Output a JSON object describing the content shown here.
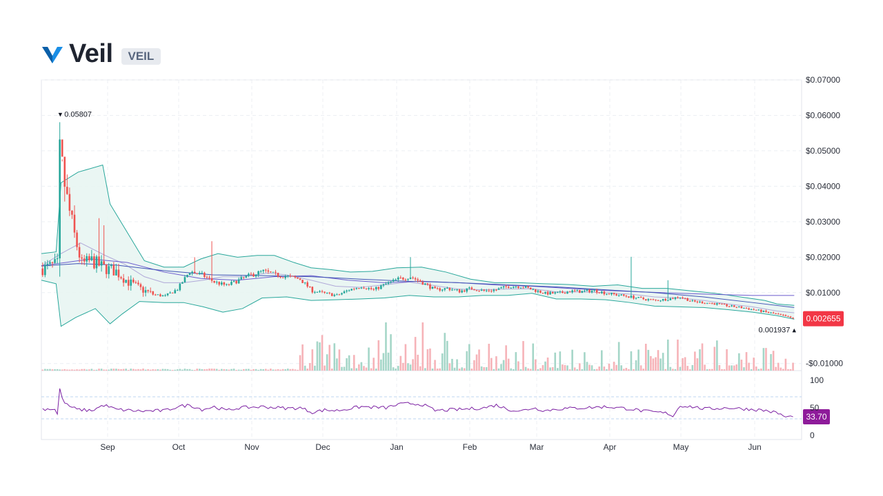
{
  "header": {
    "name": "Veil",
    "symbol": "VEIL",
    "logo_icon": "veil-logo-icon",
    "logo_color": "#1a8ee6"
  },
  "chart_data": {
    "type": "candlestick",
    "price_axis": {
      "tick_labels": [
        "$0.07000",
        "$0.06000",
        "$0.05000",
        "$0.04000",
        "$0.03000",
        "$0.02000",
        "$0.01000",
        "-$0.01000"
      ],
      "tick_values": [
        0.07,
        0.06,
        0.05,
        0.04,
        0.03,
        0.02,
        0.01,
        -0.01
      ],
      "range": [
        -0.012,
        0.07
      ]
    },
    "x_axis": {
      "tick_labels": [
        "Sep",
        "Oct",
        "Nov",
        "Dec",
        "Jan",
        "Feb",
        "Mar",
        "Apr",
        "May",
        "Jun"
      ],
      "range_days": [
        0,
        310
      ]
    },
    "annotations": {
      "high_label": "0.05807",
      "high_value": 0.05807,
      "low_label": "0.001937",
      "low_value": 0.001937,
      "last_price_label": "0.002655",
      "last_price_value": 0.002655,
      "last_price_color": "#f23645"
    },
    "price_series": {
      "up_color": "#26a69a",
      "down_color": "#ef5350",
      "anchors_day_close": [
        [
          0,
          0.0168
        ],
        [
          6,
          0.018
        ],
        [
          7,
          0.052
        ],
        [
          8,
          0.045
        ],
        [
          10,
          0.036
        ],
        [
          13,
          0.026
        ],
        [
          16,
          0.018
        ],
        [
          20,
          0.019
        ],
        [
          25,
          0.017
        ],
        [
          30,
          0.016
        ],
        [
          35,
          0.013
        ],
        [
          40,
          0.011
        ],
        [
          45,
          0.0095
        ],
        [
          50,
          0.009
        ],
        [
          55,
          0.011
        ],
        [
          60,
          0.016
        ],
        [
          65,
          0.015
        ],
        [
          70,
          0.013
        ],
        [
          75,
          0.012
        ],
        [
          80,
          0.0135
        ],
        [
          85,
          0.015
        ],
        [
          90,
          0.016
        ],
        [
          95,
          0.015
        ],
        [
          100,
          0.0145
        ],
        [
          105,
          0.0138
        ],
        [
          110,
          0.0105
        ],
        [
          115,
          0.0098
        ],
        [
          120,
          0.0092
        ],
        [
          125,
          0.0108
        ],
        [
          130,
          0.0118
        ],
        [
          135,
          0.0108
        ],
        [
          140,
          0.0124
        ],
        [
          145,
          0.0138
        ],
        [
          150,
          0.0145
        ],
        [
          155,
          0.0128
        ],
        [
          160,
          0.0108
        ],
        [
          165,
          0.0112
        ],
        [
          170,
          0.0104
        ],
        [
          175,
          0.0112
        ],
        [
          180,
          0.0105
        ],
        [
          185,
          0.0108
        ],
        [
          190,
          0.0118
        ],
        [
          195,
          0.0118
        ],
        [
          200,
          0.0108
        ],
        [
          205,
          0.0098
        ],
        [
          210,
          0.0098
        ],
        [
          215,
          0.0104
        ],
        [
          220,
          0.0103
        ],
        [
          225,
          0.0106
        ],
        [
          230,
          0.0098
        ],
        [
          235,
          0.0093
        ],
        [
          240,
          0.0088
        ],
        [
          245,
          0.0082
        ],
        [
          250,
          0.0078
        ],
        [
          255,
          0.0082
        ],
        [
          260,
          0.0088
        ],
        [
          265,
          0.0075
        ],
        [
          270,
          0.0072
        ],
        [
          275,
          0.0068
        ],
        [
          280,
          0.0062
        ],
        [
          285,
          0.0058
        ],
        [
          290,
          0.0052
        ],
        [
          295,
          0.0045
        ],
        [
          300,
          0.0038
        ],
        [
          303,
          0.0032
        ],
        [
          306,
          0.0027
        ]
      ],
      "spikes_day_high": [
        [
          7,
          0.05807
        ],
        [
          8,
          0.047
        ],
        [
          9,
          0.04
        ],
        [
          23,
          0.031
        ],
        [
          25,
          0.029
        ],
        [
          62,
          0.02
        ],
        [
          69,
          0.0245
        ],
        [
          150,
          0.02
        ],
        [
          240,
          0.0201
        ],
        [
          255,
          0.0135
        ]
      ]
    },
    "bollinger_bands": {
      "color": "#26a69a",
      "fill": "#e6f4f1",
      "upper": [
        [
          0,
          0.021
        ],
        [
          6,
          0.0215
        ],
        [
          8,
          0.041
        ],
        [
          15,
          0.044
        ],
        [
          25,
          0.046
        ],
        [
          28,
          0.035
        ],
        [
          35,
          0.027
        ],
        [
          42,
          0.019
        ],
        [
          50,
          0.0172
        ],
        [
          58,
          0.0172
        ],
        [
          65,
          0.0195
        ],
        [
          72,
          0.021
        ],
        [
          80,
          0.02
        ],
        [
          88,
          0.0205
        ],
        [
          95,
          0.0205
        ],
        [
          103,
          0.0185
        ],
        [
          110,
          0.017
        ],
        [
          118,
          0.0165
        ],
        [
          126,
          0.0158
        ],
        [
          135,
          0.016
        ],
        [
          145,
          0.017
        ],
        [
          155,
          0.0172
        ],
        [
          165,
          0.0158
        ],
        [
          175,
          0.0138
        ],
        [
          185,
          0.0128
        ],
        [
          195,
          0.0128
        ],
        [
          205,
          0.0125
        ],
        [
          215,
          0.0123
        ],
        [
          225,
          0.0118
        ],
        [
          235,
          0.0122
        ],
        [
          245,
          0.0112
        ],
        [
          255,
          0.0112
        ],
        [
          265,
          0.0105
        ],
        [
          275,
          0.0098
        ],
        [
          285,
          0.0088
        ],
        [
          295,
          0.0078
        ],
        [
          300,
          0.0068
        ],
        [
          307,
          0.0064
        ]
      ],
      "middle": [
        [
          0,
          0.0175
        ],
        [
          8,
          0.021
        ],
        [
          16,
          0.024
        ],
        [
          26,
          0.0205
        ],
        [
          34,
          0.018
        ],
        [
          42,
          0.0145
        ],
        [
          50,
          0.0128
        ],
        [
          58,
          0.0128
        ],
        [
          66,
          0.0135
        ],
        [
          74,
          0.0145
        ],
        [
          82,
          0.0145
        ],
        [
          92,
          0.0155
        ],
        [
          100,
          0.015
        ],
        [
          110,
          0.0135
        ],
        [
          120,
          0.0118
        ],
        [
          130,
          0.0115
        ],
        [
          140,
          0.0122
        ],
        [
          150,
          0.013
        ],
        [
          160,
          0.012
        ],
        [
          170,
          0.011
        ],
        [
          180,
          0.0108
        ],
        [
          190,
          0.011
        ],
        [
          200,
          0.0111
        ],
        [
          210,
          0.0102
        ],
        [
          220,
          0.0102
        ],
        [
          230,
          0.01
        ],
        [
          240,
          0.0096
        ],
        [
          250,
          0.0088
        ],
        [
          260,
          0.0085
        ],
        [
          270,
          0.0078
        ],
        [
          280,
          0.0068
        ],
        [
          290,
          0.006
        ],
        [
          300,
          0.0048
        ],
        [
          307,
          0.0043
        ]
      ],
      "lower": [
        [
          0,
          0.0135
        ],
        [
          6,
          0.0125
        ],
        [
          8,
          0.0005
        ],
        [
          14,
          0.003
        ],
        [
          22,
          0.0055
        ],
        [
          28,
          0.0012
        ],
        [
          33,
          0.004
        ],
        [
          40,
          0.0075
        ],
        [
          50,
          0.0072
        ],
        [
          58,
          0.0072
        ],
        [
          66,
          0.006
        ],
        [
          74,
          0.0045
        ],
        [
          82,
          0.0055
        ],
        [
          90,
          0.0085
        ],
        [
          100,
          0.0088
        ],
        [
          110,
          0.0078
        ],
        [
          120,
          0.008
        ],
        [
          130,
          0.0082
        ],
        [
          140,
          0.0085
        ],
        [
          150,
          0.0092
        ],
        [
          160,
          0.0088
        ],
        [
          170,
          0.0088
        ],
        [
          180,
          0.0092
        ],
        [
          190,
          0.0092
        ],
        [
          200,
          0.0098
        ],
        [
          210,
          0.0082
        ],
        [
          220,
          0.0082
        ],
        [
          230,
          0.008
        ],
        [
          240,
          0.0072
        ],
        [
          250,
          0.0062
        ],
        [
          260,
          0.006
        ],
        [
          270,
          0.0058
        ],
        [
          280,
          0.0052
        ],
        [
          290,
          0.0045
        ],
        [
          300,
          0.0035
        ],
        [
          307,
          0.0025
        ]
      ]
    },
    "moving_averages": [
      {
        "color": "#6a5acd",
        "points": [
          [
            0,
            0.0176
          ],
          [
            10,
            0.0185
          ],
          [
            20,
            0.0195
          ],
          [
            35,
            0.0185
          ],
          [
            50,
            0.0158
          ],
          [
            65,
            0.014
          ],
          [
            80,
            0.0135
          ],
          [
            95,
            0.0145
          ],
          [
            110,
            0.0148
          ],
          [
            125,
            0.0135
          ],
          [
            140,
            0.0128
          ],
          [
            155,
            0.0132
          ],
          [
            170,
            0.0128
          ],
          [
            185,
            0.0122
          ],
          [
            200,
            0.0118
          ],
          [
            215,
            0.0112
          ],
          [
            230,
            0.0106
          ],
          [
            245,
            0.0102
          ],
          [
            260,
            0.0098
          ],
          [
            275,
            0.0095
          ],
          [
            290,
            0.0092
          ],
          [
            307,
            0.0092
          ]
        ]
      },
      {
        "color": "#3f51b5",
        "points": [
          [
            0,
            0.0175
          ],
          [
            15,
            0.0182
          ],
          [
            30,
            0.0178
          ],
          [
            50,
            0.0162
          ],
          [
            70,
            0.015
          ],
          [
            90,
            0.0148
          ],
          [
            110,
            0.0145
          ],
          [
            130,
            0.0138
          ],
          [
            150,
            0.0132
          ],
          [
            170,
            0.0128
          ],
          [
            190,
            0.0122
          ],
          [
            210,
            0.0116
          ],
          [
            230,
            0.0108
          ],
          [
            250,
            0.01
          ],
          [
            270,
            0.0088
          ],
          [
            290,
            0.0072
          ],
          [
            307,
            0.0058
          ]
        ]
      }
    ],
    "volume": {
      "up_color": "#a5d6c8",
      "down_color": "#f6b3b8"
    },
    "rsi": {
      "tick_labels": [
        "100",
        "50",
        "0"
      ],
      "tick_values": [
        100,
        50,
        0
      ],
      "upper_band": 70,
      "lower_band": 30,
      "line_color": "#7b1fa2",
      "last_label": "33.70",
      "last_value": 33.7,
      "badge_color": "#8e1b9a",
      "anchors": [
        [
          0,
          48
        ],
        [
          5,
          48
        ],
        [
          6,
          38
        ],
        [
          7,
          85
        ],
        [
          8,
          66
        ],
        [
          10,
          55
        ],
        [
          14,
          47
        ],
        [
          20,
          45
        ],
        [
          25,
          55
        ],
        [
          30,
          47
        ],
        [
          40,
          44
        ],
        [
          50,
          45
        ],
        [
          55,
          52
        ],
        [
          60,
          55
        ],
        [
          65,
          47
        ],
        [
          70,
          52
        ],
        [
          75,
          45
        ],
        [
          80,
          50
        ],
        [
          90,
          52
        ],
        [
          100,
          49
        ],
        [
          105,
          50
        ],
        [
          110,
          42
        ],
        [
          115,
          46
        ],
        [
          120,
          45
        ],
        [
          130,
          52
        ],
        [
          140,
          50
        ],
        [
          145,
          56
        ],
        [
          150,
          58
        ],
        [
          155,
          56
        ],
        [
          160,
          45
        ],
        [
          170,
          47
        ],
        [
          180,
          50
        ],
        [
          185,
          55
        ],
        [
          190,
          47
        ],
        [
          195,
          44
        ],
        [
          200,
          50
        ],
        [
          205,
          45
        ],
        [
          210,
          48
        ],
        [
          220,
          50
        ],
        [
          230,
          52
        ],
        [
          240,
          48
        ],
        [
          245,
          44
        ],
        [
          250,
          42
        ],
        [
          255,
          40
        ],
        [
          257,
          35
        ],
        [
          260,
          54
        ],
        [
          265,
          52
        ],
        [
          270,
          48
        ],
        [
          280,
          50
        ],
        [
          290,
          47
        ],
        [
          295,
          45
        ],
        [
          300,
          40
        ],
        [
          303,
          33
        ],
        [
          306,
          34
        ]
      ]
    }
  }
}
